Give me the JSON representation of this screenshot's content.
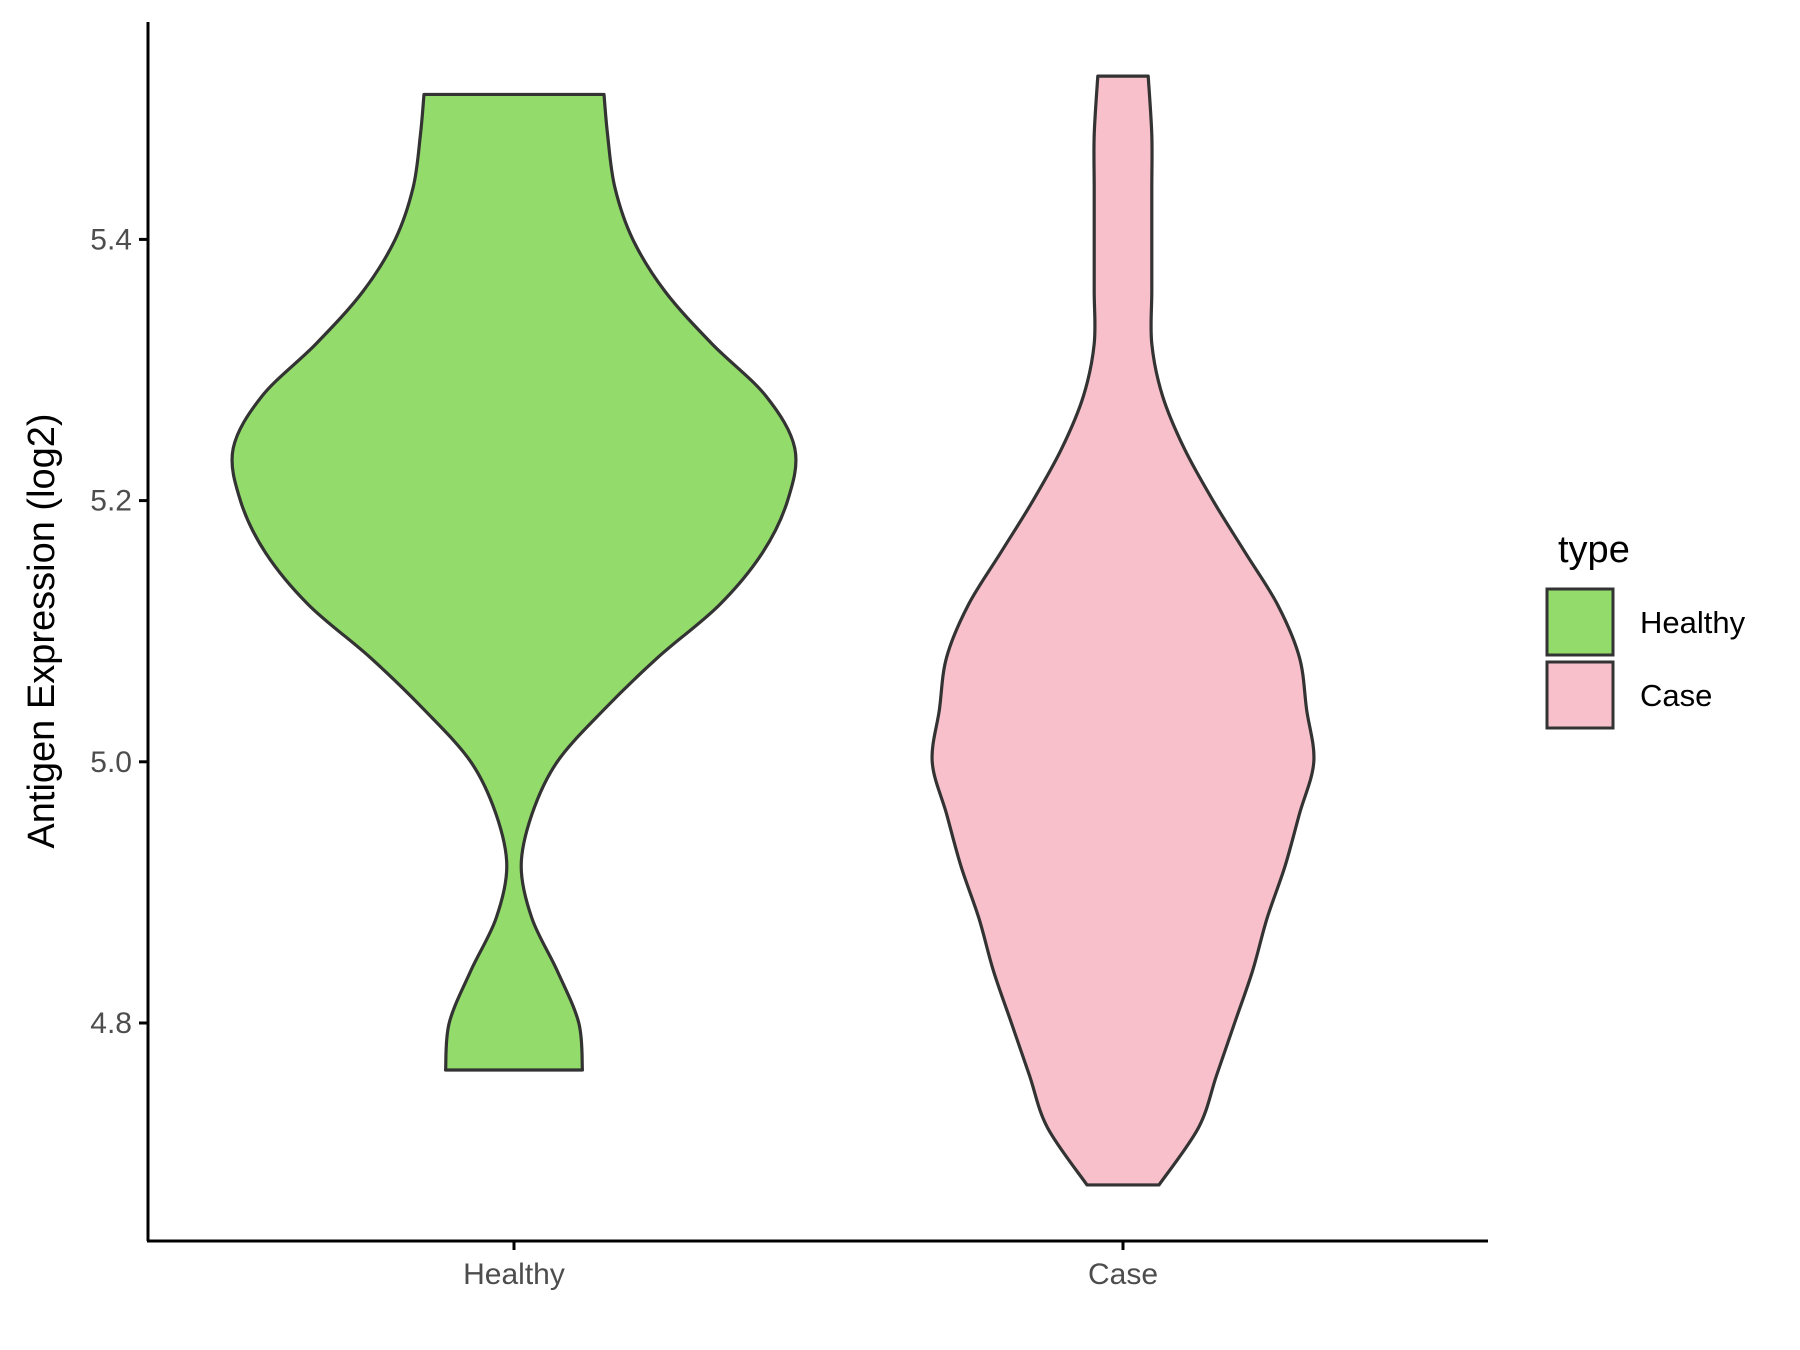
{
  "chart_data": {
    "type": "violin",
    "title": "",
    "xlabel": "",
    "ylabel": "Antigen Expression (log2)",
    "categories": [
      "Healthy",
      "Case"
    ],
    "yticks": [
      "4.8",
      "5.0",
      "5.2",
      "5.4"
    ],
    "ylim": [
      4.66,
      5.56
    ],
    "series": [
      {
        "name": "Healthy",
        "color": "#93dc6b",
        "min": 4.764,
        "max": 5.511,
        "density": [
          [
            4.764,
            0.19
          ],
          [
            4.8,
            0.18
          ],
          [
            4.84,
            0.12
          ],
          [
            4.88,
            0.05
          ],
          [
            4.92,
            0.02
          ],
          [
            4.96,
            0.05
          ],
          [
            5.0,
            0.12
          ],
          [
            5.04,
            0.25
          ],
          [
            5.08,
            0.4
          ],
          [
            5.12,
            0.57
          ],
          [
            5.16,
            0.69
          ],
          [
            5.2,
            0.76
          ],
          [
            5.24,
            0.78
          ],
          [
            5.28,
            0.7
          ],
          [
            5.32,
            0.55
          ],
          [
            5.36,
            0.42
          ],
          [
            5.4,
            0.33
          ],
          [
            5.44,
            0.28
          ],
          [
            5.48,
            0.26
          ],
          [
            5.511,
            0.25
          ]
        ]
      },
      {
        "name": "Case",
        "color": "#f8c0cb",
        "min": 4.676,
        "max": 5.525,
        "density": [
          [
            4.676,
            0.1
          ],
          [
            4.72,
            0.21
          ],
          [
            4.76,
            0.26
          ],
          [
            4.8,
            0.31
          ],
          [
            4.84,
            0.36
          ],
          [
            4.88,
            0.4
          ],
          [
            4.92,
            0.45
          ],
          [
            4.96,
            0.49
          ],
          [
            5.0,
            0.53
          ],
          [
            5.04,
            0.51
          ],
          [
            5.08,
            0.49
          ],
          [
            5.12,
            0.43
          ],
          [
            5.16,
            0.34
          ],
          [
            5.2,
            0.25
          ],
          [
            5.24,
            0.17
          ],
          [
            5.28,
            0.11
          ],
          [
            5.32,
            0.08
          ],
          [
            5.36,
            0.08
          ],
          [
            5.4,
            0.08
          ],
          [
            5.44,
            0.08
          ],
          [
            5.48,
            0.08
          ],
          [
            5.525,
            0.07
          ]
        ]
      }
    ],
    "grid": false,
    "legend": {
      "title": "type",
      "position": "right",
      "entries": [
        "Healthy",
        "Case"
      ]
    }
  }
}
